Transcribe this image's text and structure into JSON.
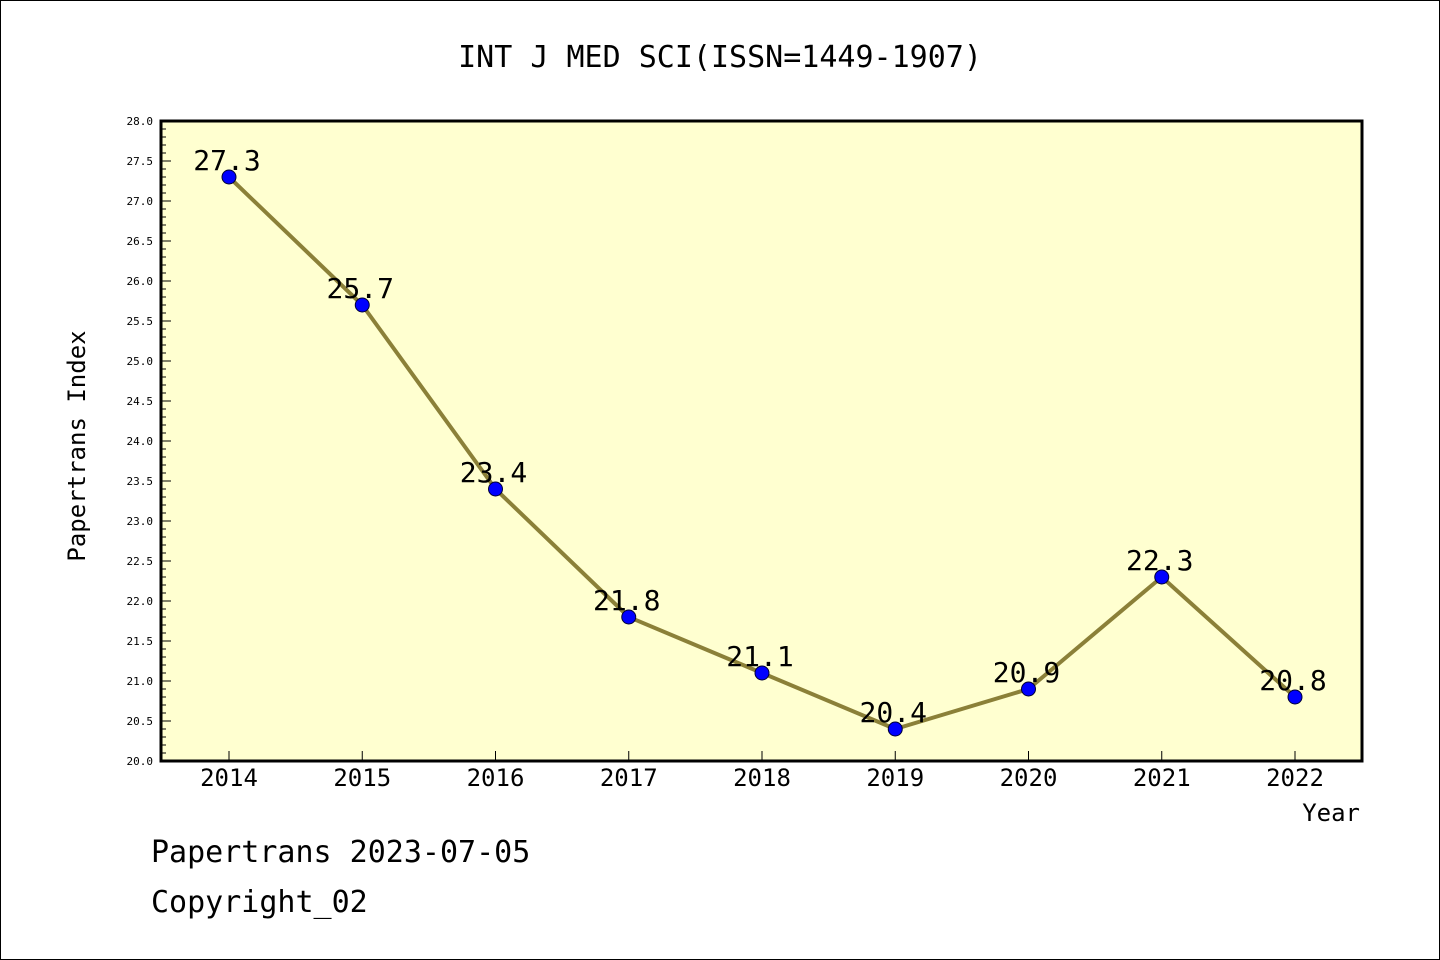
{
  "chart_data": {
    "type": "line",
    "title": "INT J MED SCI(ISSN=1449-1907)",
    "xlabel": "Year",
    "ylabel": "Papertrans Index",
    "categories": [
      "2014",
      "2015",
      "2016",
      "2017",
      "2018",
      "2019",
      "2020",
      "2021",
      "2022"
    ],
    "series": [
      {
        "values": [
          27.3,
          25.7,
          23.4,
          21.8,
          21.1,
          20.4,
          20.9,
          22.3,
          20.8
        ]
      }
    ],
    "data_labels": [
      "27.3",
      "25.7",
      "23.4",
      "21.8",
      "21.1",
      "20.4",
      "20.9",
      "22.3",
      "20.8"
    ],
    "ylim": [
      20.0,
      28.0
    ],
    "yticks": [
      "20.0",
      "20.5",
      "21.0",
      "21.5",
      "22.0",
      "22.5",
      "23.0",
      "23.5",
      "24.0",
      "24.5",
      "25.0",
      "25.5",
      "26.0",
      "26.5",
      "27.0",
      "27.5",
      "28.0"
    ],
    "grid": false,
    "legend": "none",
    "colors": {
      "plot_background": "#ffffd0",
      "line": "#8b8038",
      "marker": "#0000ff",
      "marker_edge": "#000033"
    }
  },
  "footer": {
    "line1": "Papertrans 2023-07-05",
    "line2": "Copyright_02"
  }
}
